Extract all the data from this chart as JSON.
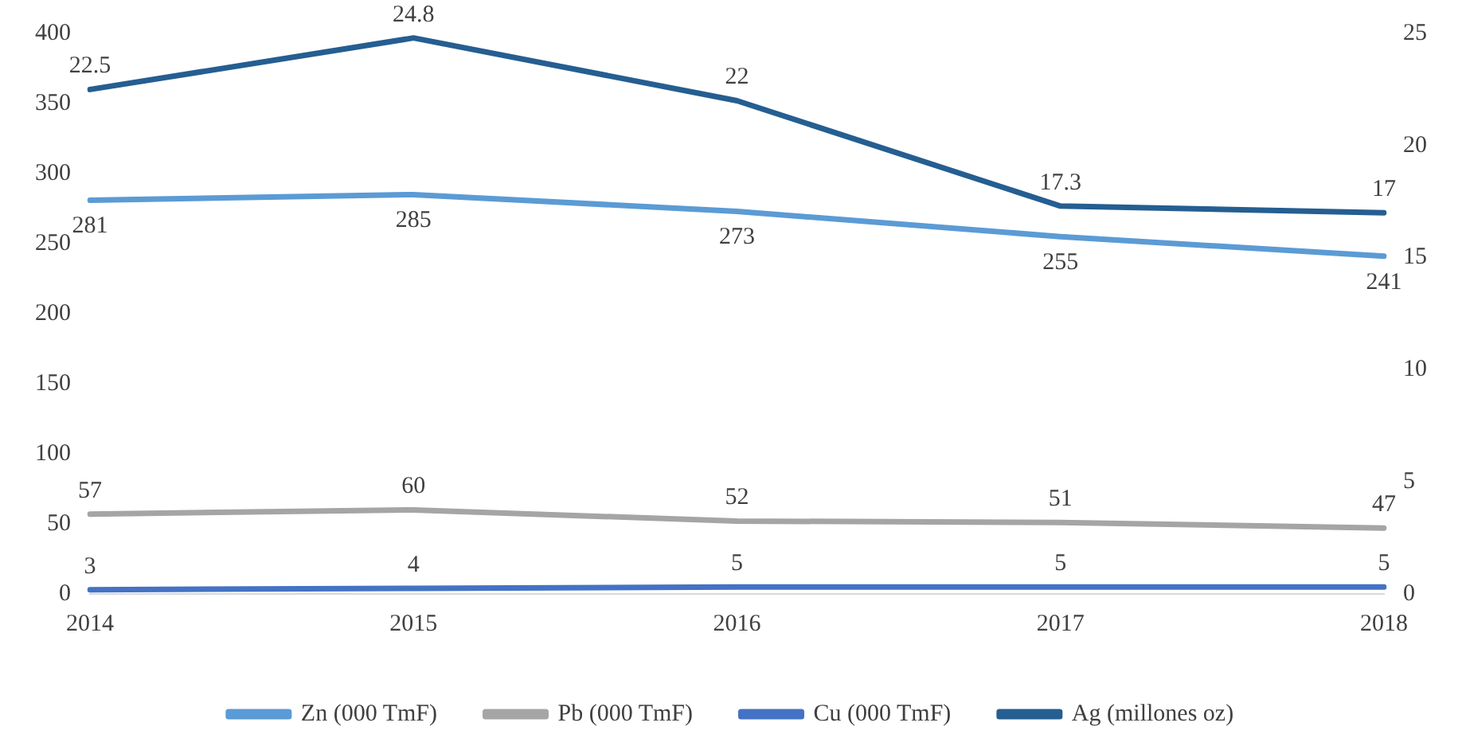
{
  "chart_data": {
    "type": "line",
    "categories": [
      "2014",
      "2015",
      "2016",
      "2017",
      "2018"
    ],
    "series": [
      {
        "name": "Zn (000 TmF)",
        "color": "#5b9bd5",
        "values": [
          281,
          285,
          273,
          255,
          241
        ]
      },
      {
        "name": "Pb (000 TmF)",
        "color": "#a5a5a5",
        "values": [
          57,
          60,
          52,
          51,
          47
        ]
      },
      {
        "name": "Cu (000 TmF)",
        "color": "#4472c4",
        "values": [
          3,
          4,
          5,
          5,
          5
        ]
      },
      {
        "name": "Ag (millones oz)",
        "color": "#255e91",
        "values": [
          22.5,
          24.8,
          22,
          17.3,
          17
        ],
        "axis": "y2"
      }
    ],
    "ylim": [
      0,
      400
    ],
    "yticks": [
      0,
      50,
      100,
      150,
      200,
      250,
      300,
      350,
      400
    ],
    "y2lim": [
      0,
      25
    ],
    "y2ticks": [
      0,
      5,
      10,
      15,
      20,
      25
    ],
    "grid": false,
    "legend": "bottom",
    "data_labels": true,
    "marker": "none",
    "line_style": "solid"
  }
}
